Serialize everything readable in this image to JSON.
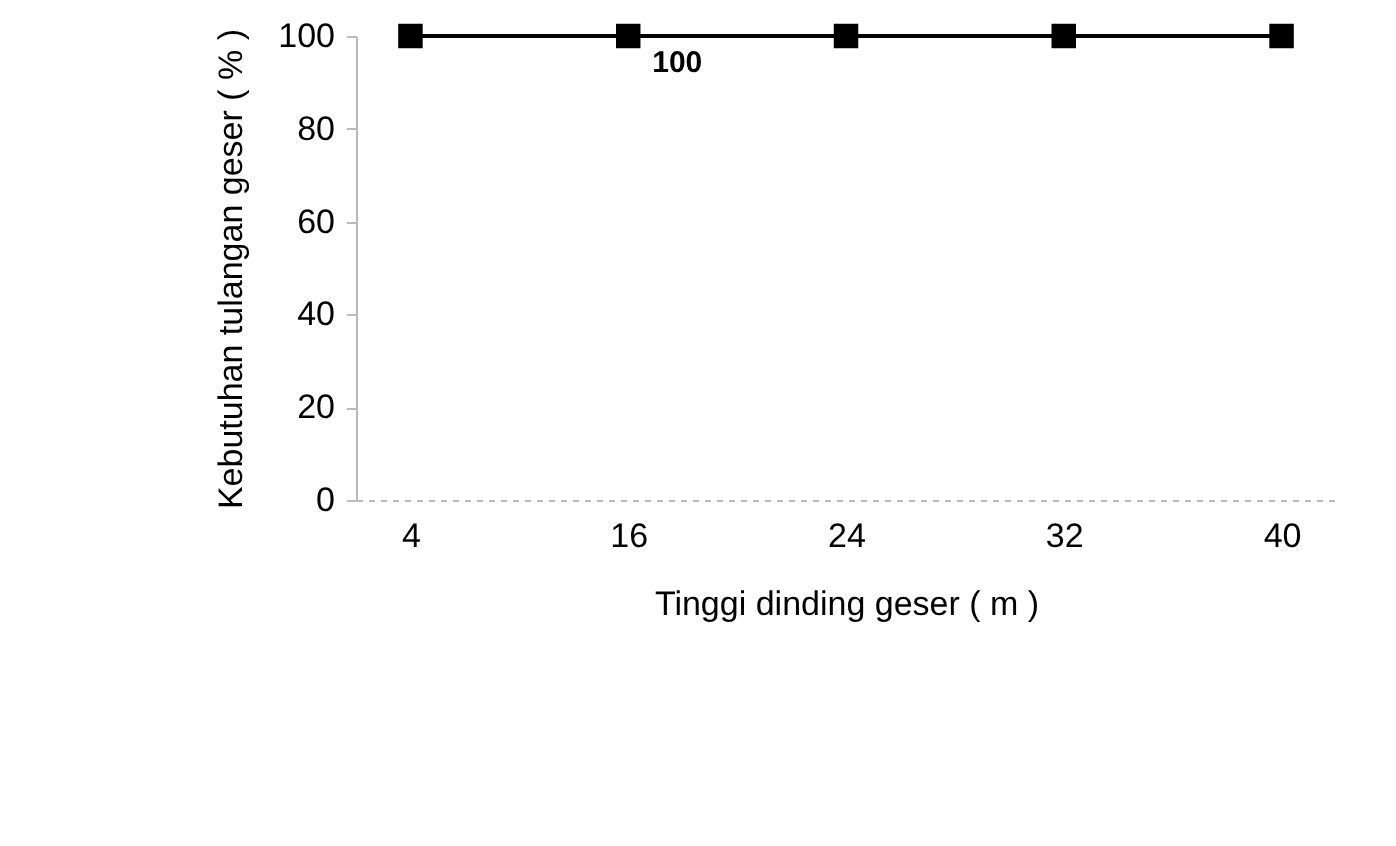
{
  "chart_data": {
    "type": "line",
    "xlabel": "Tinggi dinding geser ( m )",
    "ylabel": "Kebutuhan tulangan geser ( % )",
    "categories": [
      "4",
      "16",
      "24",
      "32",
      "40"
    ],
    "series": [
      {
        "color": "#000000",
        "values": [
          100,
          100,
          100,
          100,
          100
        ],
        "value_labels": [
          null,
          "100",
          null,
          null,
          null
        ]
      }
    ],
    "ylim": [
      0,
      100
    ],
    "yticks": [
      0,
      20,
      40,
      60,
      80,
      100
    ],
    "grid": false,
    "marker": "square",
    "line_style": "solid"
  }
}
